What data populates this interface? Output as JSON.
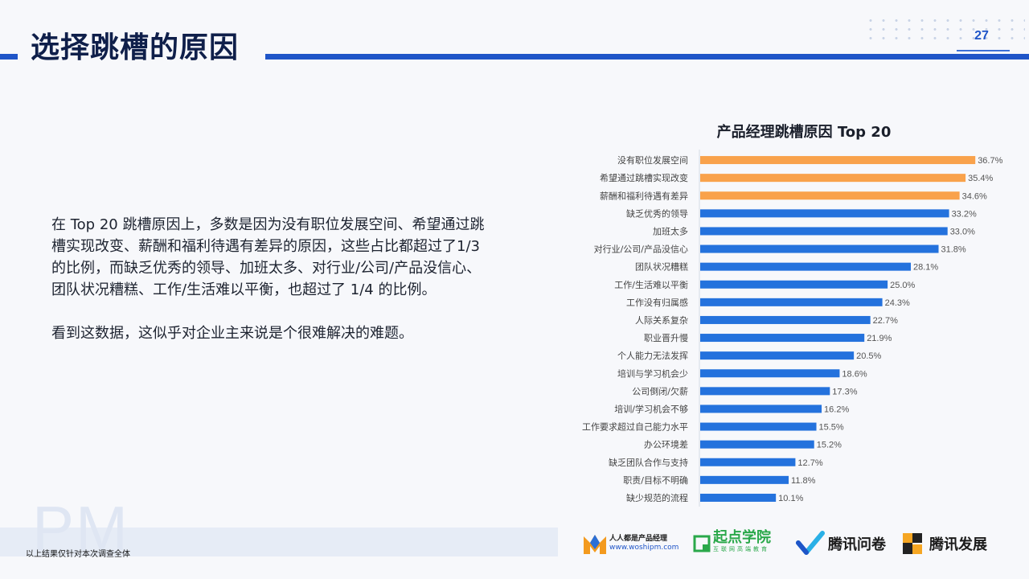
{
  "header": {
    "title": "选择跳槽的原因",
    "page_number": "27"
  },
  "body": {
    "paragraph1": "在 Top 20 跳槽原因上，多数是因为没有职位发展空间、希望通过跳槽实现改变、薪酬和福利待遇有差异的原因，这些占比都超过了1/3  的比例，而缺乏优秀的领导、加班太多、对行业/公司/产品没信心、团队状况糟糕、工作/生活难以平衡，也超过了 1/4 的比例。",
    "paragraph2": "看到这数据，这似乎对企业主来说是个很难解决的难题。"
  },
  "chart_data": {
    "type": "bar",
    "orientation": "horizontal",
    "title": "产品经理跳槽原因 Top 20",
    "categories": [
      "没有职位发展空间",
      "希望通过跳槽实现改变",
      "薪酬和福利待遇有差异",
      "缺乏优秀的领导",
      "加班太多",
      "对行业/公司/产品没信心",
      "团队状况糟糕",
      "工作/生活难以平衡",
      "工作没有归属感",
      "人际关系复杂",
      "职业晋升慢",
      "个人能力无法发挥",
      "培训与学习机会少",
      "公司倒闭/欠薪",
      "培训/学习机会不够",
      "工作要求超过自己能力水平",
      "办公环境差",
      "缺乏团队合作与支持",
      "职责/目标不明确",
      "缺少规范的流程"
    ],
    "values": [
      36.7,
      35.4,
      34.6,
      33.2,
      33.0,
      31.8,
      28.1,
      25.0,
      24.3,
      22.7,
      21.9,
      20.5,
      18.6,
      17.3,
      16.2,
      15.5,
      15.2,
      12.7,
      11.8,
      10.1
    ],
    "data_labels": [
      "36.7%",
      "35.4%",
      "34.6%",
      "33.2%",
      "33.0%",
      "31.8%",
      "28.1%",
      "25.0%",
      "24.3%",
      "22.7%",
      "21.9%",
      "20.5%",
      "18.6%",
      "17.3%",
      "16.2%",
      "15.5%",
      "15.2%",
      "12.7%",
      "11.8%",
      "10.1%"
    ],
    "highlight_top": 3,
    "xlim": [
      0,
      37
    ],
    "colors": {
      "highlight": "#f9a24b",
      "normal": "#2472dd",
      "axis": "#d5dbe6",
      "label": "#444444",
      "value_label": "#555555"
    }
  },
  "footer": {
    "note": "以上结果仅针对本次调查全体",
    "watermark": "PM",
    "logos": [
      {
        "name": "人人都是产品经理",
        "sub": "www.woshipm.com",
        "color": "#e8372f"
      },
      {
        "name": "起点学院",
        "sub": "互联网高端教育",
        "color": "#2aa84a"
      },
      {
        "name": "腾讯问卷",
        "color": "#1a1a1a"
      },
      {
        "name": "腾讯发展",
        "color": "#1a1a1a"
      }
    ]
  }
}
